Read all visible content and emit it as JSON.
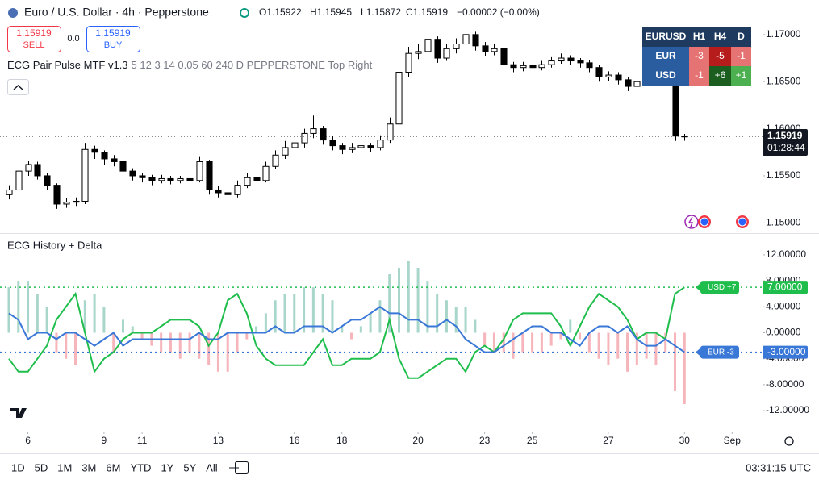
{
  "header": {
    "title": "Euro / U.S. Dollar · 4h · Pepperstone",
    "ohlc_labels": [
      "O",
      "H",
      "L",
      "C"
    ],
    "change": "−0.00002 (−0.00%)"
  },
  "trade": {
    "sell_price": "1.15919",
    "sell_label": "SELL",
    "spread": "0.0",
    "buy_price": "1.15919",
    "buy_label": "BUY"
  },
  "indicator": {
    "name": "ECG Pair Pulse MTF v1.3",
    "params": "5 12 3 14 0.05 60 240 D PEPPERSTONE Top Right"
  },
  "widget": {
    "header": [
      "EURUSD",
      "H1",
      "H4",
      "D"
    ],
    "rows": [
      [
        "EUR",
        "-3",
        "-5",
        "-1"
      ],
      [
        "USD",
        "-1",
        "+6",
        "+1"
      ]
    ],
    "cell_colors": [
      [
        "#e57373",
        "#b71c1c",
        "#e57373"
      ],
      [
        "#e57373",
        "#1b5e20",
        "#4caf50"
      ]
    ]
  },
  "chart_data": [
    {
      "type": "candlestick",
      "up_color": "#ffffff",
      "down_color": "#000000",
      "candles": [
        [
          1.153,
          1.154,
          1.1525,
          1.1535
        ],
        [
          1.1535,
          1.156,
          1.1532,
          1.1555
        ],
        [
          1.1555,
          1.1566,
          1.155,
          1.1562
        ],
        [
          1.1562,
          1.1565,
          1.1546,
          1.155
        ],
        [
          1.155,
          1.1553,
          1.1535,
          1.154
        ],
        [
          1.154,
          1.1542,
          1.1515,
          1.152
        ],
        [
          1.152,
          1.1526,
          1.1516,
          1.1522
        ],
        [
          1.1522,
          1.1527,
          1.1518,
          1.1523
        ],
        [
          1.1523,
          1.1585,
          1.152,
          1.1578
        ],
        [
          1.1578,
          1.1582,
          1.1568,
          1.1575
        ],
        [
          1.1575,
          1.1577,
          1.1562,
          1.1568
        ],
        [
          1.1568,
          1.1572,
          1.156,
          1.1565
        ],
        [
          1.1565,
          1.1568,
          1.155,
          1.1555
        ],
        [
          1.1555,
          1.1558,
          1.1545,
          1.155
        ],
        [
          1.155,
          1.1553,
          1.1543,
          1.1548
        ],
        [
          1.1548,
          1.1551,
          1.154,
          1.1545
        ],
        [
          1.1545,
          1.1551,
          1.1542,
          1.1547
        ],
        [
          1.1547,
          1.155,
          1.1541,
          1.1545
        ],
        [
          1.1545,
          1.155,
          1.1542,
          1.1547
        ],
        [
          1.1547,
          1.1549,
          1.154,
          1.1545
        ],
        [
          1.1545,
          1.157,
          1.1543,
          1.1565
        ],
        [
          1.1565,
          1.1567,
          1.153,
          1.1535
        ],
        [
          1.1535,
          1.1539,
          1.1527,
          1.1532
        ],
        [
          1.1532,
          1.1536,
          1.152,
          1.153
        ],
        [
          1.153,
          1.1545,
          1.1527,
          1.154
        ],
        [
          1.154,
          1.1553,
          1.1537,
          1.1548
        ],
        [
          1.1548,
          1.1551,
          1.154,
          1.1545
        ],
        [
          1.1545,
          1.1565,
          1.1543,
          1.156
        ],
        [
          1.156,
          1.1577,
          1.1557,
          1.1572
        ],
        [
          1.1572,
          1.1587,
          1.1568,
          1.158
        ],
        [
          1.158,
          1.1592,
          1.1576,
          1.1585
        ],
        [
          1.1585,
          1.16,
          1.158,
          1.1595
        ],
        [
          1.1595,
          1.1614,
          1.159,
          1.16
        ],
        [
          1.16,
          1.1603,
          1.1583,
          1.1588
        ],
        [
          1.1588,
          1.1592,
          1.1577,
          1.1582
        ],
        [
          1.1582,
          1.1585,
          1.1573,
          1.1578
        ],
        [
          1.1578,
          1.1585,
          1.1574,
          1.158
        ],
        [
          1.158,
          1.1587,
          1.1576,
          1.1582
        ],
        [
          1.1582,
          1.1585,
          1.1575,
          1.158
        ],
        [
          1.158,
          1.1593,
          1.1577,
          1.1588
        ],
        [
          1.1588,
          1.1612,
          1.1585,
          1.1605
        ],
        [
          1.1605,
          1.1665,
          1.16,
          1.166
        ],
        [
          1.166,
          1.1687,
          1.1655,
          1.168
        ],
        [
          1.168,
          1.169,
          1.1674,
          1.1682
        ],
        [
          1.1682,
          1.171,
          1.1678,
          1.1695
        ],
        [
          1.1695,
          1.1698,
          1.167,
          1.1675
        ],
        [
          1.1675,
          1.169,
          1.1672,
          1.1685
        ],
        [
          1.1685,
          1.1696,
          1.168,
          1.169
        ],
        [
          1.169,
          1.1708,
          1.1686,
          1.17
        ],
        [
          1.17,
          1.1703,
          1.1683,
          1.1688
        ],
        [
          1.1688,
          1.1692,
          1.1677,
          1.1682
        ],
        [
          1.1682,
          1.169,
          1.1678,
          1.1685
        ],
        [
          1.1685,
          1.1688,
          1.1662,
          1.1668
        ],
        [
          1.1668,
          1.1671,
          1.166,
          1.1665
        ],
        [
          1.1665,
          1.1671,
          1.1661,
          1.1667
        ],
        [
          1.1667,
          1.167,
          1.166,
          1.1665
        ],
        [
          1.1665,
          1.1672,
          1.1662,
          1.1668
        ],
        [
          1.1668,
          1.1676,
          1.1665,
          1.1672
        ],
        [
          1.1672,
          1.168,
          1.1669,
          1.1675
        ],
        [
          1.1675,
          1.1678,
          1.1668,
          1.1672
        ],
        [
          1.1672,
          1.1675,
          1.1665,
          1.167
        ],
        [
          1.167,
          1.1673,
          1.166,
          1.1665
        ],
        [
          1.1665,
          1.1668,
          1.165,
          1.1655
        ],
        [
          1.1655,
          1.1661,
          1.1651,
          1.1657
        ],
        [
          1.1657,
          1.166,
          1.1647,
          1.1652
        ],
        [
          1.1652,
          1.1655,
          1.164,
          1.1645
        ],
        [
          1.1645,
          1.1655,
          1.1642,
          1.165
        ],
        [
          1.165,
          1.166,
          1.1647,
          1.1655
        ],
        [
          1.1655,
          1.1658,
          1.1645,
          1.165
        ],
        [
          1.165,
          1.166,
          1.1647,
          1.1655
        ],
        [
          1.1655,
          1.1658,
          1.1587,
          1.15922
        ],
        [
          1.15922,
          1.15945,
          1.15872,
          1.15919
        ]
      ],
      "countdown": "01:28:44",
      "xlim": [
        -0.93,
        79.2
      ],
      "xticks": [
        {
          "value": 2,
          "label": "6"
        },
        {
          "value": 10,
          "label": "9"
        },
        {
          "value": 14,
          "label": "11"
        },
        {
          "value": 22,
          "label": "13"
        },
        {
          "value": 30,
          "label": "16"
        },
        {
          "value": 35,
          "label": "18"
        },
        {
          "value": 43,
          "label": "20"
        },
        {
          "value": 50,
          "label": "23"
        },
        {
          "value": 55,
          "label": "25"
        },
        {
          "value": 63,
          "label": "27"
        },
        {
          "value": 71,
          "label": "30"
        },
        {
          "value": 76,
          "label": "Sep"
        }
      ],
      "ylim": [
        1.149,
        1.1711
      ],
      "yticks": [
        {
          "value": 1.15,
          "label": "1.15000"
        },
        {
          "value": 1.155,
          "label": "1.15500"
        },
        {
          "value": 1.16,
          "label": "1.16000"
        },
        {
          "value": 1.165,
          "label": "1.16500"
        },
        {
          "value": 1.17,
          "label": "1.17000"
        }
      ],
      "grid": false
    },
    {
      "type": "line",
      "title": "ECG History + Delta",
      "xlim": [
        -0.93,
        79.2
      ],
      "ylim": [
        -14.6,
        14.6
      ],
      "yticks": [
        {
          "value": 12,
          "label": "12.00000"
        },
        {
          "value": 8,
          "label": "8.00000"
        },
        {
          "value": 4,
          "label": "4.00000"
        },
        {
          "value": 0,
          "label": "0.00000"
        },
        {
          "value": -4,
          "label": "-4.00000"
        },
        {
          "value": -8,
          "label": "-8.00000"
        },
        {
          "value": -12,
          "label": "-12.00000"
        }
      ],
      "grid": false,
      "histogram": {
        "positive_color": "#a9d6cb",
        "negative_color": "#f5b5ba",
        "values": [
          7,
          8,
          8,
          6,
          4,
          -3,
          -4,
          -5,
          5,
          6,
          4,
          -3,
          2,
          1,
          -1,
          -2,
          -3,
          -3,
          -4,
          -3,
          -4,
          -5,
          -6,
          -6,
          -3,
          -1,
          1,
          3,
          5,
          6,
          6,
          7,
          7,
          6,
          5,
          1,
          -1,
          1,
          3,
          5,
          9,
          10,
          11,
          10,
          8,
          6,
          5,
          4,
          4,
          2,
          -2,
          -3,
          -3,
          -4,
          -3,
          -3,
          -3,
          -2,
          -1,
          2,
          -1,
          -3,
          -4,
          -5,
          -4,
          -6,
          -5,
          -4,
          -5,
          -3,
          -9,
          -11
        ]
      },
      "series": [
        {
          "name": "USD",
          "color": "#1fbe4c",
          "tag": "USD +7",
          "price_tag": {
            "value": 7,
            "label": "7.00000"
          },
          "values": [
            -4,
            -6,
            -6,
            -4,
            -2,
            2,
            4,
            6,
            0,
            -6,
            -4,
            -3,
            -1,
            0,
            0,
            0,
            1,
            2,
            2,
            2,
            1,
            -2,
            0,
            5,
            6,
            3,
            -2,
            -4,
            -5,
            -5,
            -5,
            -5,
            -3,
            -1,
            -5,
            -5,
            -4,
            -4,
            -4,
            -3,
            2,
            -4,
            -7,
            -7,
            -6,
            -5,
            -4,
            -4,
            -6,
            -3,
            -2,
            -3,
            -1,
            2,
            3,
            3,
            3,
            3,
            1,
            -2,
            1,
            4,
            6,
            5,
            4,
            2,
            -1,
            0,
            0,
            -1,
            6,
            7
          ]
        },
        {
          "name": "EUR",
          "color": "#3a78d8",
          "tag": "EUR -3",
          "price_tag": {
            "value": -3,
            "label": "-3.00000"
          },
          "values": [
            3,
            2,
            -1,
            0,
            0,
            -1,
            0,
            0,
            -1,
            -2,
            -1,
            0,
            -2,
            -1,
            -1,
            -1,
            -1,
            -1,
            -1,
            -1,
            0,
            -1,
            -1,
            0,
            0,
            0,
            0,
            0,
            1,
            0,
            0,
            1,
            1,
            1,
            0,
            1,
            2,
            2,
            3,
            4,
            3,
            3,
            2,
            2,
            1,
            1,
            2,
            1,
            -1,
            -2,
            -3,
            -3,
            -2,
            -1,
            0,
            1,
            1,
            0,
            0,
            -1,
            -2,
            0,
            1,
            1,
            0,
            1,
            -1,
            -2,
            -2,
            -1,
            -2,
            -3
          ]
        }
      ]
    }
  ],
  "toolbar": {
    "ranges": [
      "1D",
      "5D",
      "1M",
      "3M",
      "6M",
      "YTD",
      "1Y",
      "5Y",
      "All"
    ],
    "clock": "03:31:15 UTC"
  }
}
